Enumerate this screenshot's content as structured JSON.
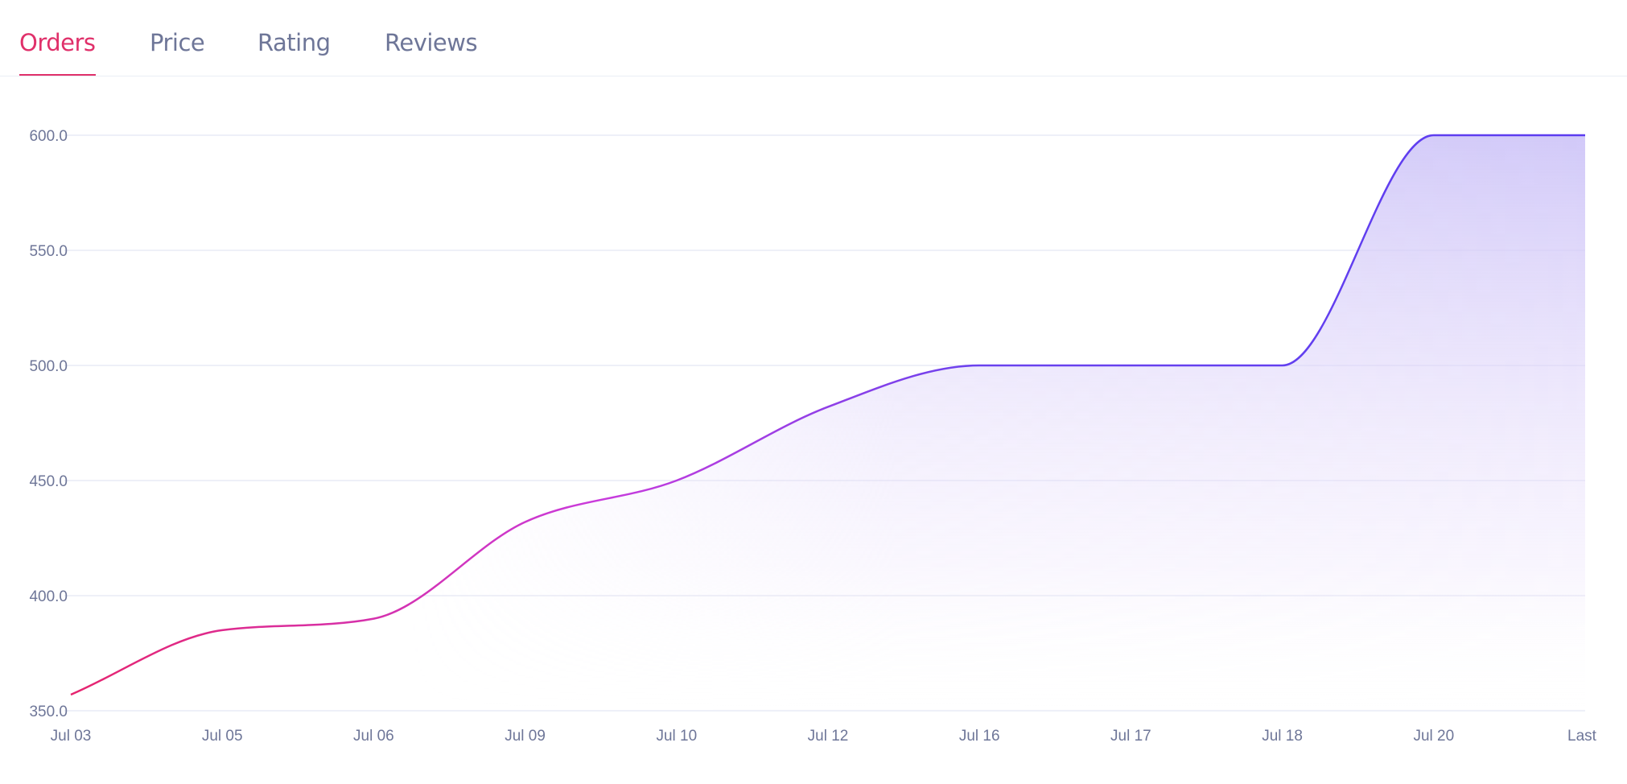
{
  "tabs": [
    {
      "label": "Orders",
      "active": true
    },
    {
      "label": "Price",
      "active": false
    },
    {
      "label": "Rating",
      "active": false
    },
    {
      "label": "Reviews",
      "active": false
    }
  ],
  "colors": {
    "accent": "#e0306a",
    "line_start": "#e6246e",
    "line_mid": "#c93bdc",
    "line_end": "#5b3cf0",
    "fill": "#c9bff7",
    "grid": "#e9ebf6"
  },
  "chart_data": {
    "type": "area",
    "title": "",
    "xlabel": "",
    "ylabel": "",
    "categories": [
      "Jul 03",
      "Jul 05",
      "Jul 06",
      "Jul 09",
      "Jul 10",
      "Jul 12",
      "Jul 16",
      "Jul 17",
      "Jul 18",
      "Jul 20",
      "Last"
    ],
    "series": [
      {
        "name": "Orders",
        "values": [
          357,
          385,
          390,
          432,
          450,
          482,
          500,
          500,
          500,
          600,
          600
        ]
      }
    ],
    "ylim": [
      350,
      600
    ],
    "yticks": [
      "350.0",
      "400.0",
      "450.0",
      "500.0",
      "550.0",
      "600.0"
    ],
    "grid": true,
    "legend": "none"
  }
}
